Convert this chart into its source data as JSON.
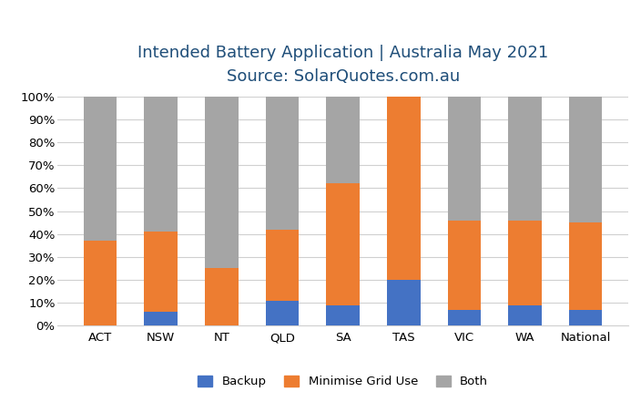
{
  "categories": [
    "ACT",
    "NSW",
    "NT",
    "QLD",
    "SA",
    "TAS",
    "VIC",
    "WA",
    "National"
  ],
  "backup": [
    0,
    6,
    0,
    11,
    9,
    20,
    7,
    9,
    7
  ],
  "minimise_grid": [
    37,
    35,
    25,
    31,
    53,
    80,
    39,
    37,
    38
  ],
  "both": [
    63,
    59,
    75,
    58,
    38,
    0,
    54,
    54,
    55
  ],
  "color_backup": "#4472C4",
  "color_minigrid": "#ED7D31",
  "color_both": "#A5A5A5",
  "title_line1": "Intended Battery Application | Australia May 2021",
  "title_line2": "Source: SolarQuotes.com.au",
  "ylabel_ticks": [
    "0%",
    "10%",
    "20%",
    "30%",
    "40%",
    "50%",
    "60%",
    "70%",
    "80%",
    "90%",
    "100%"
  ],
  "legend_labels": [
    "Backup",
    "Minimise Grid Use",
    "Both"
  ],
  "background_color": "#FFFFFF",
  "bar_width": 0.55,
  "title_color": "#1F4E79",
  "title_fontsize": 13,
  "subtitle_fontsize": 11,
  "tick_fontsize": 9.5
}
